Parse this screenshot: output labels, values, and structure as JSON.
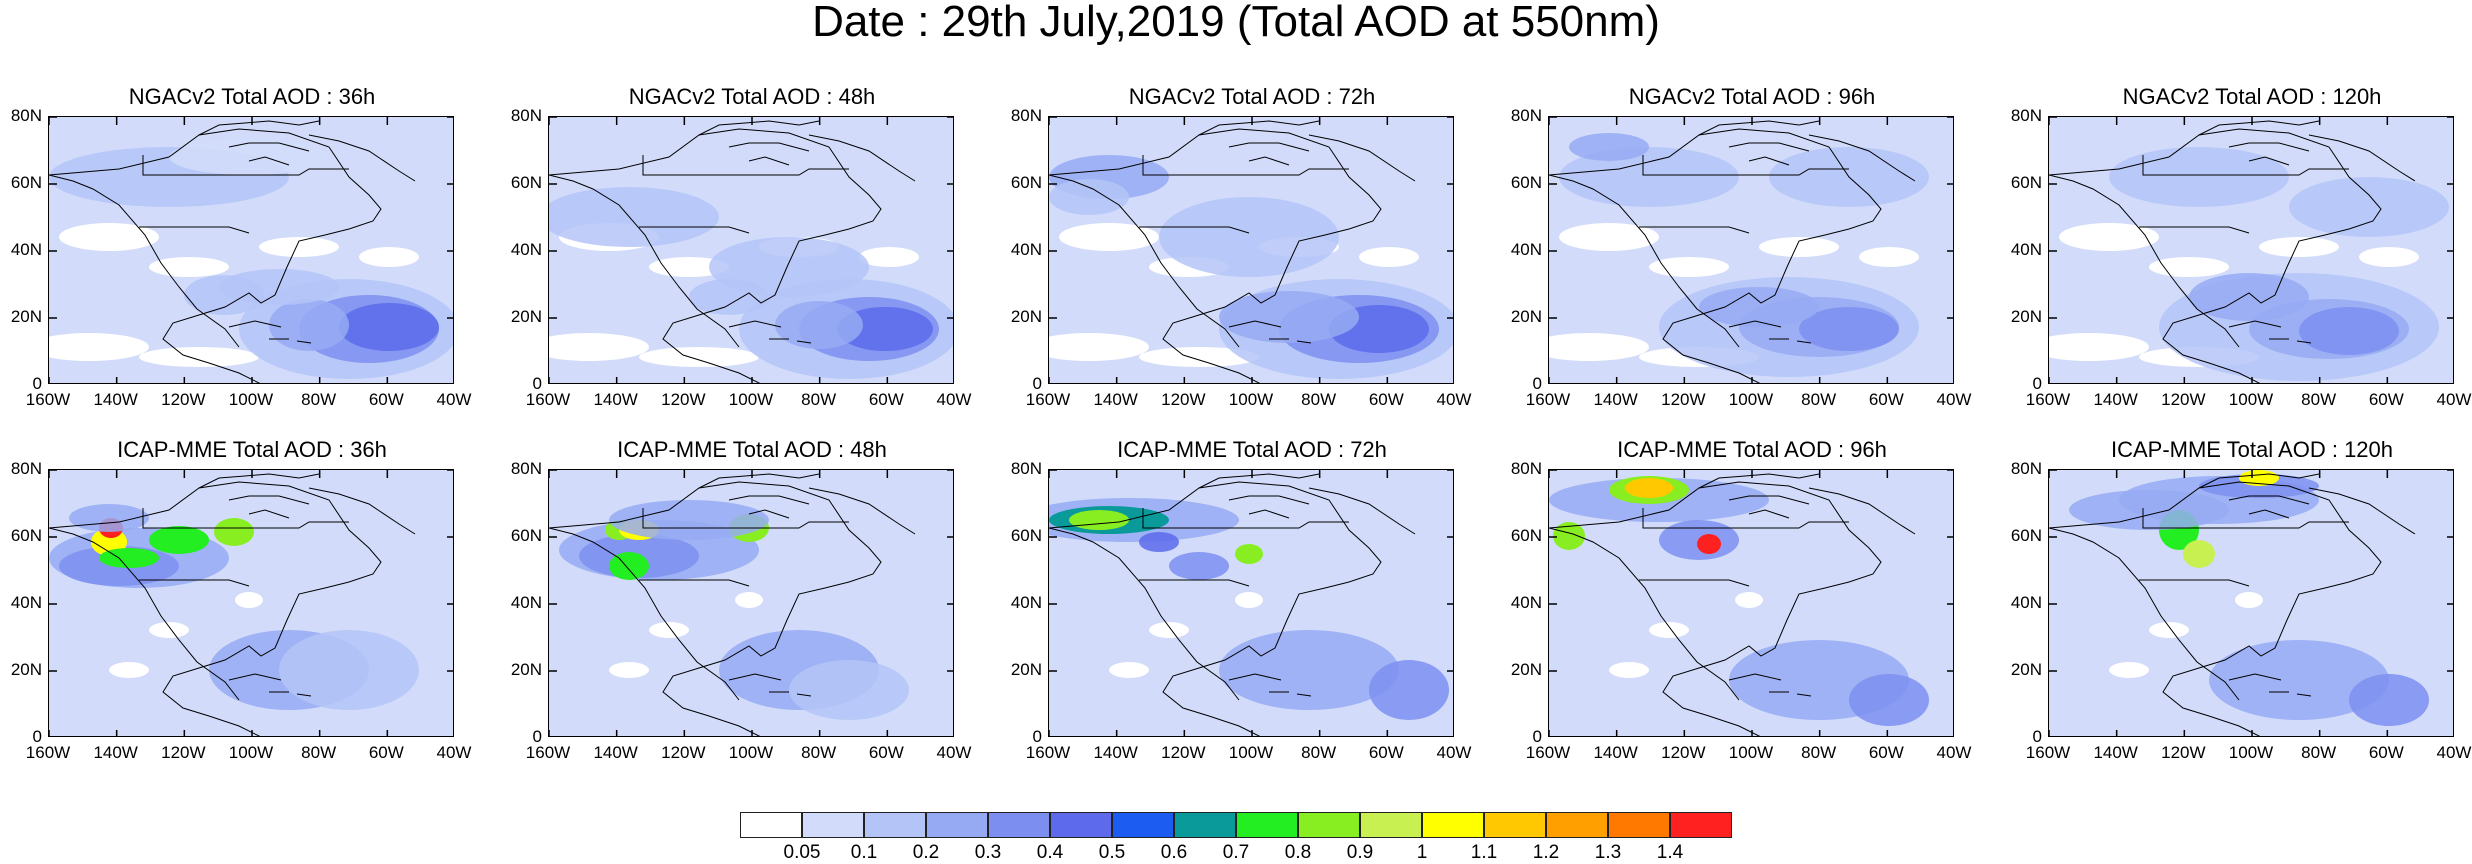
{
  "title": "Date : 29th July,2019 (Total AOD at 550nm)",
  "lat_ticks": [
    "80N",
    "60N",
    "40N",
    "20N",
    "0"
  ],
  "lon_ticks": [
    "160W",
    "140W",
    "120W",
    "100W",
    "80W",
    "60W",
    "40W"
  ],
  "rows": [
    {
      "model": "NGACv2",
      "panels": [
        {
          "title": "NGACv2 Total AOD : 36h"
        },
        {
          "title": "NGACv2 Total AOD : 48h"
        },
        {
          "title": "NGACv2 Total AOD : 72h"
        },
        {
          "title": "NGACv2 Total AOD : 96h"
        },
        {
          "title": "NGACv2 Total AOD : 120h"
        }
      ]
    },
    {
      "model": "ICAP-MME",
      "panels": [
        {
          "title": "ICAP-MME Total AOD : 36h"
        },
        {
          "title": "ICAP-MME Total AOD : 48h"
        },
        {
          "title": "ICAP-MME Total AOD : 72h"
        },
        {
          "title": "ICAP-MME Total AOD : 96h"
        },
        {
          "title": "ICAP-MME Total AOD : 120h"
        }
      ]
    }
  ],
  "colorbar": {
    "labels": [
      "0.05",
      "0.1",
      "0.2",
      "0.3",
      "0.4",
      "0.5",
      "0.6",
      "0.7",
      "0.8",
      "0.9",
      "1",
      "1.1",
      "1.2",
      "1.3",
      "1.4"
    ],
    "colors": [
      "#ffffff",
      "#d2dcfa",
      "#b4c4f7",
      "#96aaf3",
      "#7c8ff0",
      "#5c6aeb",
      "#1c5cf0",
      "#0a9a9a",
      "#22ee22",
      "#88ee22",
      "#c8f050",
      "#ffff00",
      "#ffc800",
      "#ffa000",
      "#ff7800",
      "#ff2020"
    ]
  }
}
